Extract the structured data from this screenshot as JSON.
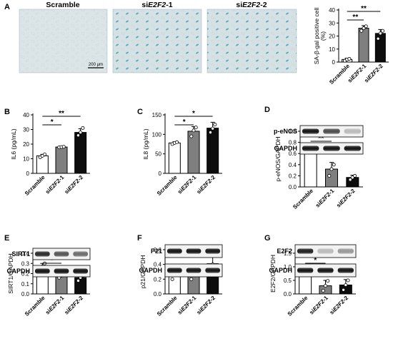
{
  "colors": {
    "scramble": "#ffffff",
    "si1": "#7f7f7f",
    "si2": "#0d0d0d",
    "cell_bg": "#d9e4e7",
    "blue_stain": "#3f8fa6"
  },
  "panelA": {
    "label": "A",
    "micro_titles": [
      "Scramble",
      "siE2F2-1",
      "siE2F2-2"
    ],
    "micro_title_parts": [
      {
        "pre": "Scramble",
        "it": "",
        "post": ""
      },
      {
        "pre": "si",
        "it": "E2F2",
        "post": "-1"
      },
      {
        "pre": "si",
        "it": "E2F2",
        "post": "-2"
      }
    ],
    "scale_bar": "200 μm"
  },
  "categories": [
    {
      "pre": "Scramble",
      "it": "",
      "post": ""
    },
    {
      "pre": "si",
      "it": "E2F2",
      "post": "-1"
    },
    {
      "pre": "si",
      "it": "E2F2",
      "post": "-2"
    }
  ],
  "blot_labels": {
    "D": [
      "p-eNOS",
      "GAPDH"
    ],
    "E": [
      "SIRT1",
      "GAPDH"
    ],
    "F": [
      "P21",
      "GAPDH"
    ],
    "G": [
      "E2F2",
      "GAPDH"
    ]
  },
  "chart_data": [
    {
      "panel": "A",
      "type": "bar",
      "ylabel": "SA-β-gal positive cell (%)",
      "ylim": [
        0,
        40
      ],
      "ticks": [
        0,
        10,
        20,
        30,
        40
      ],
      "values": [
        2,
        26,
        22
      ],
      "errors": [
        1,
        2,
        3
      ],
      "points": [
        [
          1,
          2,
          2.5
        ],
        [
          24,
          26,
          27.5
        ],
        [
          18,
          22,
          24
        ]
      ],
      "significance": [
        {
          "from": 0,
          "to": 1,
          "label": "**"
        },
        {
          "from": 0,
          "to": 2,
          "label": "**"
        }
      ]
    },
    {
      "panel": "B",
      "type": "bar",
      "ylabel": "IL6 (pg/mL)",
      "ylim": [
        0,
        40
      ],
      "ticks": [
        0,
        10,
        20,
        30,
        40
      ],
      "values": [
        12,
        18,
        28
      ],
      "errors": [
        1,
        0.5,
        2.5
      ],
      "points": [
        [
          11,
          12,
          13
        ],
        [
          17.8,
          18,
          18.2
        ],
        [
          26,
          28,
          31
        ]
      ],
      "significance": [
        {
          "from": 0,
          "to": 1,
          "label": "*"
        },
        {
          "from": 0,
          "to": 2,
          "label": "**"
        }
      ]
    },
    {
      "panel": "C",
      "type": "bar",
      "ylabel": "IL8 (pg/mL)",
      "ylim": [
        0,
        150
      ],
      "ticks": [
        0,
        50,
        100,
        150
      ],
      "values": [
        78,
        108,
        116
      ],
      "errors": [
        3,
        12,
        15
      ],
      "points": [
        [
          75,
          78,
          80
        ],
        [
          95,
          110,
          118
        ],
        [
          105,
          115,
          125
        ]
      ],
      "significance": [
        {
          "from": 0,
          "to": 1,
          "label": "*"
        },
        {
          "from": 0,
          "to": 2,
          "label": "*"
        }
      ]
    },
    {
      "panel": "D",
      "type": "bar",
      "ylabel": "p-eNOS/GAPDH",
      "ylim": [
        0,
        1.0
      ],
      "ticks": [
        0.0,
        0.2,
        0.4,
        0.6,
        0.8,
        1.0
      ],
      "values": [
        0.7,
        0.32,
        0.17
      ],
      "errors": [
        0.03,
        0.12,
        0.04
      ],
      "points": [
        [
          0.67,
          0.7,
          0.72
        ],
        [
          0.2,
          0.32,
          0.4
        ],
        [
          0.13,
          0.17,
          0.2
        ]
      ],
      "significance": [
        {
          "from": 0,
          "to": 1,
          "label": "**"
        },
        {
          "from": 0,
          "to": 2,
          "label": "**"
        }
      ]
    },
    {
      "panel": "E",
      "type": "bar",
      "ylabel": "SIRT1/GAPDH",
      "ylim": [
        0,
        0.4
      ],
      "ticks": [
        0.0,
        0.1,
        0.2,
        0.3,
        0.4
      ],
      "values": [
        0.27,
        0.18,
        0.16
      ],
      "errors": [
        0.03,
        0.02,
        0.03
      ],
      "points": [
        [
          0.24,
          0.27,
          0.3
        ],
        [
          0.16,
          0.18,
          0.2
        ],
        [
          0.13,
          0.16,
          0.18
        ]
      ],
      "significance": [
        {
          "from": 0,
          "to": 1,
          "label": "*"
        },
        {
          "from": 0,
          "to": 2,
          "label": "*"
        }
      ]
    },
    {
      "panel": "F",
      "type": "bar",
      "ylabel": "p21/GAPDH",
      "ylim": [
        0,
        0.6
      ],
      "ticks": [
        0.0,
        0.2,
        0.4,
        0.6
      ],
      "values": [
        0.3,
        0.27,
        0.41
      ],
      "errors": [
        0.1,
        0.08,
        0.12
      ],
      "points": [
        [
          0.2,
          0.3,
          0.38
        ],
        [
          0.2,
          0.27,
          0.33
        ],
        [
          0.25,
          0.4,
          0.52
        ]
      ],
      "significance": []
    },
    {
      "panel": "G",
      "type": "bar",
      "ylabel": "E2F2/GAPDH",
      "ylim": [
        0,
        1.5
      ],
      "ticks": [
        0.0,
        0.5,
        1.0,
        1.5
      ],
      "values": [
        0.8,
        0.3,
        0.33
      ],
      "errors": [
        0.12,
        0.2,
        0.2
      ],
      "points": [
        [
          0.7,
          0.82,
          0.9
        ],
        [
          0.12,
          0.3,
          0.48
        ],
        [
          0.15,
          0.33,
          0.5
        ]
      ],
      "significance": [
        {
          "from": 0,
          "to": 1,
          "label": "*"
        },
        {
          "from": 0,
          "to": 2,
          "label": "*"
        }
      ]
    }
  ],
  "panel_labels": [
    "B",
    "C",
    "D",
    "E",
    "F",
    "G"
  ]
}
